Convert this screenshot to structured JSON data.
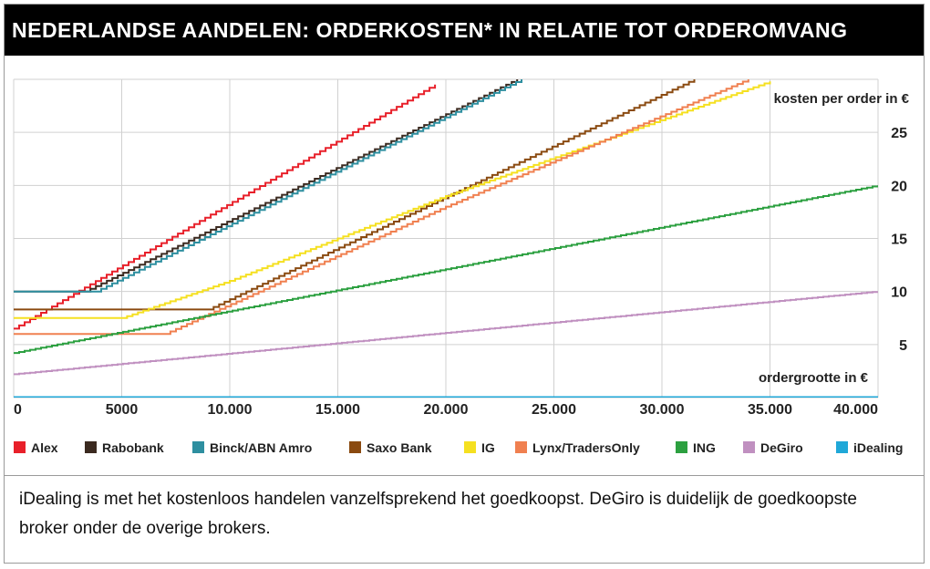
{
  "header": {
    "title": "NEDERLANDSE AANDELEN: ORDERKOSTEN* IN RELATIE TOT ORDEROMVANG"
  },
  "caption": "iDealing is met het kostenloos handelen vanzelfsprekend het goedkoopst. DeGiro is duidelijk de goedkoopste broker onder de overige brokers.",
  "chart_data": {
    "type": "line",
    "title": "NEDERLANDSE AANDELEN: ORDERKOSTEN* IN RELATIE TOT ORDEROMVANG",
    "xlabel": "ordergrootte in €",
    "ylabel": "kosten per order in €",
    "xlim": [
      0,
      40000
    ],
    "ylim": [
      0,
      30
    ],
    "x_ticks": [
      "0",
      "5000",
      "10.000",
      "15.000",
      "20.000",
      "25.000",
      "30.000",
      "35.000",
      "40.000"
    ],
    "y_ticks": [
      "5",
      "10",
      "15",
      "20",
      "25"
    ],
    "grid": true,
    "legend_position": "bottom",
    "series": [
      {
        "name": "Alex",
        "color": "#e8202a",
        "points": [
          [
            0,
            6.5
          ],
          [
            19500,
            29.5
          ]
        ]
      },
      {
        "name": "Rabobank",
        "color": "#3b2a20",
        "points": [
          [
            0,
            10
          ],
          [
            3300,
            10
          ],
          [
            23300,
            30
          ]
        ]
      },
      {
        "name": "Binck/ABN Amro",
        "color": "#2e8fa0",
        "points": [
          [
            0,
            10
          ],
          [
            3800,
            10
          ],
          [
            23500,
            30
          ]
        ]
      },
      {
        "name": "Saxo Bank",
        "color": "#8a4a10",
        "points": [
          [
            0,
            8.3
          ],
          [
            9000,
            8.3
          ],
          [
            31500,
            30
          ]
        ]
      },
      {
        "name": "IG",
        "color": "#f5e020",
        "points": [
          [
            0,
            7.5
          ],
          [
            5000,
            7.5
          ],
          [
            10000,
            11
          ],
          [
            20000,
            19
          ],
          [
            35000,
            29.8
          ]
        ]
      },
      {
        "name": "Lynx/TradersOnly",
        "color": "#f08050",
        "points": [
          [
            0,
            6
          ],
          [
            7000,
            6
          ],
          [
            20000,
            18
          ],
          [
            34000,
            30
          ]
        ]
      },
      {
        "name": "ING",
        "color": "#2ca040",
        "points": [
          [
            0,
            4.2
          ],
          [
            40000,
            20
          ]
        ]
      },
      {
        "name": "DeGiro",
        "color": "#c090c0",
        "points": [
          [
            0,
            2.2
          ],
          [
            40000,
            10
          ]
        ]
      },
      {
        "name": "iDealing",
        "color": "#20a8d8",
        "points": [
          [
            0,
            0
          ],
          [
            40000,
            0
          ]
        ]
      }
    ]
  }
}
